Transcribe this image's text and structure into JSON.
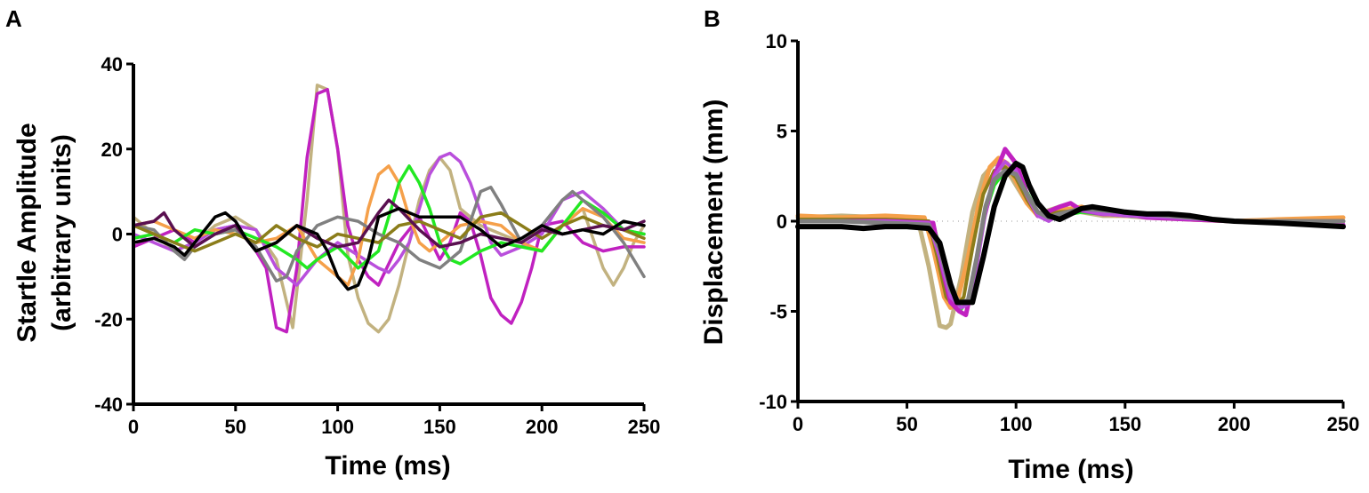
{
  "chart_data": [
    {
      "panel": "A",
      "type": "line",
      "title": "",
      "xlabel": "Time (ms)",
      "ylabel_lines": [
        "Startle Amplitude",
        "(arbitrary units)"
      ],
      "xlim": [
        0,
        250
      ],
      "ylim": [
        -40,
        40
      ],
      "xticks": [
        0,
        50,
        100,
        150,
        200,
        250
      ],
      "yticks": [
        -40,
        -20,
        0,
        20,
        40
      ],
      "grid": false,
      "series": [
        {
          "name": "trace-tan",
          "color": "#c2b280",
          "x": [
            0,
            10,
            20,
            30,
            40,
            50,
            60,
            70,
            78,
            85,
            90,
            95,
            100,
            105,
            110,
            115,
            120,
            125,
            130,
            135,
            140,
            145,
            150,
            155,
            160,
            170,
            180,
            190,
            200,
            210,
            220,
            230,
            235,
            240,
            245,
            250
          ],
          "y": [
            4,
            0,
            -4,
            -2,
            2,
            4,
            1,
            -6,
            -22,
            8,
            35,
            34,
            20,
            -5,
            -15,
            -21,
            -23,
            -20,
            -12,
            -2,
            8,
            15,
            18,
            15,
            6,
            2,
            0,
            -2,
            -4,
            2,
            6,
            -8,
            -12,
            -8,
            -2,
            2
          ]
        },
        {
          "name": "trace-magenta",
          "color": "#c021c0",
          "x": [
            0,
            10,
            20,
            30,
            40,
            50,
            60,
            65,
            70,
            75,
            80,
            85,
            90,
            95,
            100,
            105,
            110,
            115,
            120,
            130,
            140,
            150,
            155,
            160,
            165,
            170,
            175,
            180,
            185,
            190,
            195,
            200,
            210,
            220,
            230,
            240,
            250
          ],
          "y": [
            -3,
            -1,
            1,
            -2,
            1,
            2,
            -4,
            -8,
            -22,
            -23,
            -8,
            18,
            33,
            34,
            20,
            2,
            -6,
            -10,
            -12,
            -2,
            4,
            -6,
            -2,
            5,
            3,
            -5,
            -15,
            -19,
            -21,
            -16,
            -8,
            2,
            3,
            -2,
            -4,
            -3,
            -3
          ]
        },
        {
          "name": "trace-violet",
          "color": "#b94fdc",
          "x": [
            0,
            10,
            20,
            30,
            40,
            50,
            60,
            70,
            80,
            90,
            100,
            110,
            120,
            125,
            130,
            135,
            140,
            145,
            150,
            155,
            160,
            165,
            170,
            175,
            180,
            190,
            200,
            210,
            220,
            230,
            240,
            250
          ],
          "y": [
            0,
            -2,
            -4,
            -2,
            1,
            2,
            1,
            -8,
            -12,
            -6,
            -2,
            -5,
            -8,
            -9,
            -6,
            -2,
            6,
            14,
            18,
            19,
            17,
            12,
            5,
            -2,
            -5,
            -3,
            0,
            8,
            10,
            6,
            1,
            0
          ]
        },
        {
          "name": "trace-orange",
          "color": "#f5a04a",
          "x": [
            0,
            10,
            20,
            30,
            40,
            50,
            60,
            70,
            80,
            90,
            100,
            105,
            110,
            115,
            120,
            125,
            130,
            135,
            140,
            145,
            150,
            160,
            170,
            180,
            190,
            200,
            210,
            220,
            230,
            240,
            250
          ],
          "y": [
            2,
            3,
            1,
            -1,
            1,
            0,
            -2,
            -1,
            2,
            -6,
            -10,
            -12,
            -6,
            6,
            14,
            16,
            12,
            4,
            -2,
            -4,
            -2,
            2,
            3,
            2,
            -2,
            -4,
            2,
            6,
            4,
            -1,
            -2
          ]
        },
        {
          "name": "trace-green",
          "color": "#22e822",
          "x": [
            0,
            10,
            20,
            30,
            40,
            50,
            60,
            70,
            80,
            85,
            90,
            100,
            110,
            120,
            130,
            135,
            140,
            145,
            150,
            155,
            160,
            170,
            180,
            190,
            200,
            210,
            220,
            230,
            240,
            250
          ],
          "y": [
            -1,
            0,
            -2,
            1,
            0,
            1,
            -1,
            -3,
            -6,
            -8,
            -6,
            -3,
            -8,
            -4,
            12,
            16,
            12,
            6,
            -2,
            -6,
            -7,
            -4,
            -2,
            -3,
            -4,
            2,
            8,
            5,
            1,
            0
          ]
        },
        {
          "name": "trace-gray",
          "color": "#808080",
          "x": [
            0,
            10,
            20,
            25,
            30,
            40,
            50,
            60,
            70,
            75,
            80,
            90,
            100,
            110,
            120,
            130,
            140,
            150,
            160,
            170,
            175,
            180,
            190,
            200,
            210,
            215,
            220,
            230,
            240,
            250
          ],
          "y": [
            2,
            1,
            -4,
            -6,
            -3,
            0,
            1,
            -3,
            -11,
            -10,
            -4,
            2,
            4,
            3,
            0,
            -2,
            -6,
            -8,
            -4,
            10,
            11,
            7,
            -2,
            2,
            8,
            10,
            8,
            4,
            -2,
            -10
          ]
        },
        {
          "name": "trace-olive",
          "color": "#8b7d1a",
          "x": [
            0,
            10,
            20,
            30,
            40,
            50,
            60,
            70,
            80,
            90,
            100,
            110,
            120,
            130,
            140,
            150,
            160,
            170,
            180,
            190,
            200,
            210,
            220,
            230,
            240,
            250
          ],
          "y": [
            2,
            0,
            -2,
            -4,
            -2,
            0,
            -2,
            2,
            -1,
            -3,
            0,
            -1,
            -2,
            2,
            3,
            1,
            -1,
            4,
            5,
            2,
            -1,
            2,
            4,
            2,
            1,
            -1
          ]
        },
        {
          "name": "trace-plum",
          "color": "#5a1050",
          "x": [
            0,
            10,
            15,
            20,
            30,
            40,
            50,
            60,
            70,
            80,
            90,
            100,
            110,
            120,
            125,
            130,
            140,
            150,
            160,
            170,
            180,
            190,
            200,
            210,
            220,
            230,
            240,
            250
          ],
          "y": [
            2,
            3,
            5,
            1,
            -3,
            0,
            2,
            -4,
            -2,
            2,
            -1,
            -3,
            -2,
            5,
            8,
            6,
            1,
            -3,
            -2,
            0,
            -1,
            -2,
            1,
            0,
            1,
            2,
            1,
            3
          ]
        },
        {
          "name": "trace-black",
          "color": "#000000",
          "x": [
            0,
            10,
            20,
            25,
            30,
            40,
            45,
            50,
            55,
            60,
            70,
            80,
            90,
            95,
            100,
            105,
            110,
            115,
            120,
            130,
            140,
            150,
            160,
            170,
            180,
            190,
            200,
            210,
            220,
            230,
            240,
            250
          ],
          "y": [
            -2,
            -1,
            -3,
            -5,
            -2,
            4,
            5,
            3,
            -1,
            -4,
            -2,
            2,
            0,
            -4,
            -10,
            -13,
            -12,
            -6,
            4,
            6,
            4,
            4,
            4,
            1,
            -3,
            -1,
            2,
            0,
            1,
            0,
            3,
            2
          ]
        }
      ]
    },
    {
      "panel": "B",
      "type": "line",
      "title": "",
      "xlabel": "Time (ms)",
      "ylabel": "Displacement (mm)",
      "xlim": [
        0,
        250
      ],
      "ylim": [
        -10,
        10
      ],
      "xticks": [
        0,
        50,
        100,
        150,
        200,
        250
      ],
      "yticks": [
        -10,
        -5,
        0,
        5,
        10
      ],
      "grid": false,
      "series": [
        {
          "name": "trace-tan",
          "color": "#c2b280",
          "width": 5,
          "x": [
            0,
            20,
            40,
            55,
            60,
            65,
            68,
            70,
            75,
            80,
            85,
            90,
            95,
            100,
            105,
            110,
            120,
            130,
            140,
            150,
            160,
            180,
            200,
            220,
            250
          ],
          "y": [
            0.2,
            0.3,
            0.2,
            0.1,
            -2.5,
            -5.8,
            -5.9,
            -5.7,
            -3,
            0.5,
            2.5,
            3.2,
            3.0,
            2.0,
            1.0,
            0.4,
            0.8,
            0.5,
            0.3,
            0.3,
            0.2,
            0.1,
            0,
            0,
            0
          ]
        },
        {
          "name": "trace-orange",
          "color": "#f5a04a",
          "width": 5,
          "x": [
            0,
            20,
            40,
            58,
            62,
            67,
            70,
            73,
            78,
            83,
            88,
            92,
            96,
            100,
            105,
            110,
            120,
            130,
            140,
            150,
            160,
            180,
            200,
            220,
            250
          ],
          "y": [
            0.3,
            0.2,
            0.3,
            0.2,
            -1.5,
            -4.2,
            -4.8,
            -4.5,
            -2,
            1,
            3,
            3.5,
            3.2,
            2.2,
            1.0,
            0.3,
            0.6,
            0.8,
            0.4,
            0.3,
            0.4,
            0.1,
            0,
            0.1,
            0.2
          ]
        },
        {
          "name": "trace-olive",
          "color": "#8b7d1a",
          "width": 4,
          "x": [
            0,
            20,
            40,
            60,
            64,
            68,
            72,
            76,
            80,
            85,
            90,
            95,
            100,
            105,
            110,
            120,
            130,
            140,
            150,
            170,
            200,
            250
          ],
          "y": [
            0.1,
            0.1,
            0.1,
            0,
            -2,
            -4.2,
            -4.8,
            -4.2,
            -1.5,
            1.5,
            2.8,
            3.0,
            2.4,
            1.2,
            0.3,
            0.5,
            0.6,
            0.4,
            0.3,
            0.2,
            0,
            0
          ]
        },
        {
          "name": "trace-green",
          "color": "#22e822",
          "width": 4,
          "x": [
            0,
            20,
            40,
            62,
            66,
            70,
            74,
            78,
            82,
            86,
            90,
            95,
            100,
            105,
            110,
            115,
            120,
            130,
            140,
            150,
            170,
            200,
            250
          ],
          "y": [
            0,
            0,
            0,
            -0.1,
            -2,
            -4.5,
            -5,
            -4.4,
            -2,
            0.5,
            2,
            2.8,
            2.6,
            1.6,
            0.5,
            0.1,
            0.3,
            0.5,
            0.4,
            0.3,
            0.2,
            0,
            0
          ]
        },
        {
          "name": "trace-magenta",
          "color": "#c021c0",
          "width": 5,
          "x": [
            0,
            20,
            40,
            62,
            66,
            70,
            74,
            77,
            80,
            85,
            90,
            95,
            100,
            105,
            110,
            120,
            125,
            130,
            140,
            150,
            160,
            180,
            200,
            220,
            250
          ],
          "y": [
            0,
            0,
            0,
            -0.1,
            -2.5,
            -4.5,
            -5.0,
            -5.2,
            -3.5,
            0,
            2.5,
            4.0,
            3.2,
            1.5,
            0.3,
            0.8,
            1.0,
            0.6,
            0.4,
            0.4,
            0.2,
            0.1,
            0,
            -0.1,
            -0.2
          ]
        },
        {
          "name": "trace-violet",
          "color": "#b94fdc",
          "width": 4,
          "x": [
            0,
            20,
            40,
            60,
            65,
            70,
            75,
            78,
            82,
            86,
            90,
            95,
            100,
            105,
            110,
            115,
            120,
            130,
            140,
            150,
            170,
            200,
            250
          ],
          "y": [
            0,
            0,
            0,
            -0.1,
            -2,
            -4.2,
            -4.8,
            -4.6,
            -2.5,
            0.5,
            2.5,
            3.3,
            2.8,
            1.4,
            0.3,
            0,
            0.4,
            0.6,
            0.4,
            0.3,
            0.2,
            0,
            0
          ]
        },
        {
          "name": "trace-gray",
          "color": "#808080",
          "width": 5,
          "x": [
            0,
            20,
            40,
            60,
            65,
            70,
            74,
            78,
            82,
            86,
            90,
            95,
            100,
            105,
            110,
            115,
            120,
            130,
            140,
            150,
            160,
            170,
            180,
            200,
            220,
            250
          ],
          "y": [
            0,
            0,
            -0.1,
            -0.2,
            -1.5,
            -3.8,
            -4.5,
            -4.4,
            -2,
            0.8,
            2.3,
            2.8,
            2.6,
            1.5,
            0.5,
            0.2,
            0.4,
            0.7,
            0.6,
            0.5,
            0.4,
            0.3,
            0.2,
            0,
            0,
            0
          ]
        },
        {
          "name": "trace-black",
          "color": "#000000",
          "width": 6,
          "x": [
            0,
            10,
            20,
            30,
            40,
            50,
            60,
            65,
            70,
            73,
            76,
            80,
            85,
            90,
            95,
            100,
            103,
            106,
            110,
            115,
            120,
            125,
            130,
            135,
            140,
            150,
            160,
            170,
            180,
            190,
            200,
            220,
            250
          ],
          "y": [
            -0.3,
            -0.3,
            -0.3,
            -0.4,
            -0.3,
            -0.3,
            -0.4,
            -1.2,
            -3.5,
            -4.5,
            -4.5,
            -4.5,
            -2.0,
            0.8,
            2.5,
            3.2,
            3.0,
            2.0,
            1.0,
            0.3,
            0.1,
            0.4,
            0.7,
            0.8,
            0.7,
            0.5,
            0.4,
            0.4,
            0.3,
            0.1,
            0,
            -0.1,
            -0.3
          ]
        }
      ]
    }
  ]
}
